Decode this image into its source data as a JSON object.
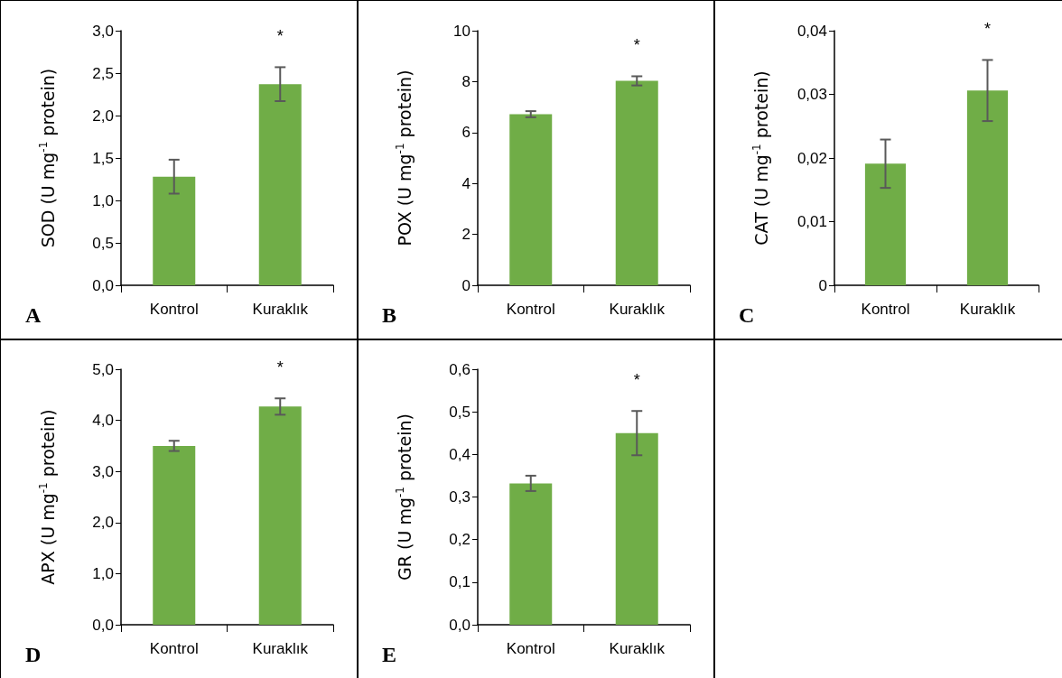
{
  "chart_data": [
    {
      "type": "bar",
      "title": "A",
      "ylabel": "SOD (U mg$^{-1}$ protein)",
      "categories": [
        "Kontrol",
        "Kuraklık"
      ],
      "values": [
        1.28,
        2.37
      ],
      "errors": [
        0.2,
        0.2
      ],
      "color": "#70ad47",
      "ylim": [
        0,
        3
      ],
      "yticks": [
        {
          "value": 0,
          "label": "0,0"
        },
        {
          "value": 0.5,
          "label": "0,5"
        },
        {
          "value": 1,
          "label": "1,0"
        },
        {
          "value": 1.5,
          "label": "1,5"
        },
        {
          "value": 2,
          "label": "2,0"
        },
        {
          "value": 2.5,
          "label": "2,5"
        },
        {
          "value": 3,
          "label": "3,0"
        }
      ],
      "annotations": [
        "*"
      ]
    },
    {
      "type": "bar",
      "title": "B",
      "ylabel": "POX (U mg$^{-1}$ protein)",
      "categories": [
        "Kontrol",
        "Kuraklık"
      ],
      "values": [
        6.72,
        8.03
      ],
      "errors": [
        0.12,
        0.18
      ],
      "color": "#70ad47",
      "ylim": [
        0,
        10
      ],
      "yticks": [
        0,
        2,
        4,
        6,
        8,
        10
      ],
      "annotations": [
        "*"
      ]
    },
    {
      "type": "bar",
      "title": "C",
      "ylabel": "CAT (U mg$^{-1}$ protein)",
      "categories": [
        "Kontrol",
        "Kuraklık"
      ],
      "values": [
        0.0191,
        0.0306
      ],
      "errors": [
        0.0038,
        0.0048
      ],
      "color": "#70ad47",
      "ylim": [
        0,
        0.04
      ],
      "yticks": [
        0,
        {
          "value": 0.01,
          "label": "0,01"
        },
        {
          "value": 0.02,
          "label": "0,02"
        },
        {
          "value": 0.03,
          "label": "0,03"
        },
        {
          "value": 0.04,
          "label": "0,04"
        }
      ],
      "annotations": [
        "*"
      ]
    },
    {
      "type": "bar",
      "title": "D",
      "ylabel": "APX (U mg$^{-1}$ protein)",
      "categories": [
        "Kontrol",
        "Kuraklık"
      ],
      "values": [
        3.5,
        4.27
      ],
      "errors": [
        0.1,
        0.16
      ],
      "color": "#70ad47",
      "ylim": [
        0,
        5
      ],
      "yticks": [
        {
          "value": 0,
          "label": "0,0"
        },
        {
          "value": 1,
          "label": "1,0"
        },
        {
          "value": 2,
          "label": "2,0"
        },
        {
          "value": 3,
          "label": "3,0"
        },
        {
          "value": 4,
          "label": "4,0"
        },
        {
          "value": 5,
          "label": "5,0"
        }
      ],
      "annotations": [
        "*"
      ]
    },
    {
      "type": "bar",
      "title": "E",
      "ylabel": "GR (U mg$^{-1}$ protein)",
      "categories": [
        "Kontrol",
        "Kuraklık"
      ],
      "values": [
        0.332,
        0.45
      ],
      "errors": [
        0.018,
        0.052
      ],
      "color": "#70ad47",
      "ylim": [
        0,
        0.6
      ],
      "yticks": [
        {
          "value": 0,
          "label": "0,0"
        },
        {
          "value": 0.1,
          "label": "0,1"
        },
        {
          "value": 0.2,
          "label": "0,2"
        },
        {
          "value": 0.3,
          "label": "0,3"
        },
        {
          "value": 0.4,
          "label": "0,4"
        },
        {
          "value": 0.5,
          "label": "0,5"
        },
        {
          "value": 0.6,
          "label": "0,6"
        }
      ],
      "annotations": [
        "*"
      ]
    }
  ]
}
